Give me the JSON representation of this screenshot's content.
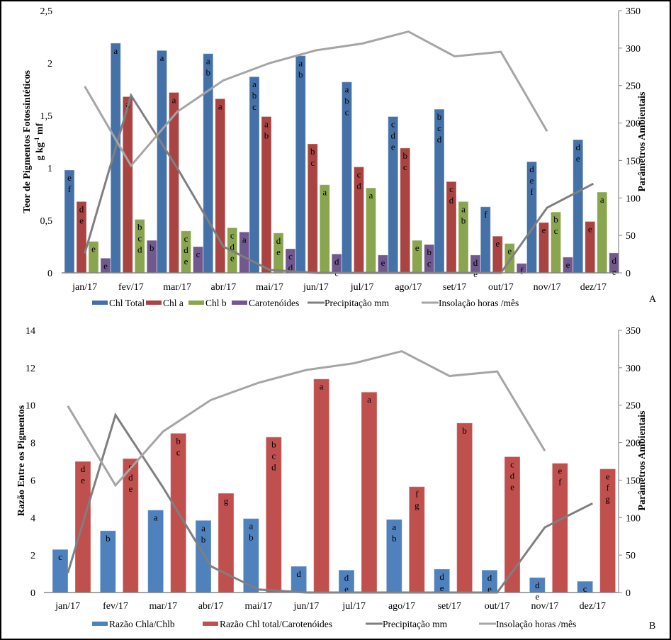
{
  "chart_data": [
    {
      "type": "bar",
      "panel_label": "A",
      "categories": [
        "jan/17",
        "fev/17",
        "mar/17",
        "abr/17",
        "mai/17",
        "jun/17",
        "jul/17",
        "ago/17",
        "set/17",
        "out/17",
        "nov/17",
        "dez/17"
      ],
      "ylabel": "Teor de Pigmentos Fotossintéticos",
      "ylabel_line2": "g kg-1 mf",
      "y2label": "Parâmetros Ambientais",
      "ylim": [
        0,
        2.5
      ],
      "yticks": [
        "0",
        "0,5",
        "1",
        "1,5",
        "2",
        "2,5"
      ],
      "y2lim": [
        0,
        350
      ],
      "y2ticks": [
        "0",
        "50",
        "100",
        "150",
        "200",
        "250",
        "300",
        "350"
      ],
      "grid": false,
      "legend_position": "bottom",
      "series": [
        {
          "name": "Chl Total",
          "kind": "bar",
          "axis": "left",
          "color": "#4472A8",
          "values": [
            0.98,
            2.19,
            2.12,
            2.09,
            1.87,
            2.07,
            1.82,
            1.49,
            1.56,
            0.63,
            1.06,
            1.27
          ],
          "letters": [
            "ef",
            "a",
            "a",
            "ab",
            "abc",
            "ab",
            "abc",
            "cde",
            "bcd",
            "f",
            "def",
            "de"
          ]
        },
        {
          "name": "Chl a",
          "kind": "bar",
          "axis": "left",
          "color": "#AA4443",
          "values": [
            0.68,
            1.68,
            1.72,
            1.66,
            1.49,
            1.23,
            1.01,
            1.19,
            0.87,
            0.35,
            0.48,
            0.49
          ],
          "letters": [
            "de",
            "a",
            "a",
            "a",
            "ab",
            "bc",
            "cd",
            "bc",
            "cd",
            "e",
            "e",
            "e"
          ]
        },
        {
          "name": "Chl b",
          "kind": "bar",
          "axis": "left",
          "color": "#89A54E",
          "values": [
            0.3,
            0.51,
            0.4,
            0.43,
            0.38,
            0.84,
            0.81,
            0.31,
            0.68,
            0.28,
            0.58,
            0.77
          ],
          "letters": [
            "e",
            "bcd",
            "cde",
            "cde",
            "de",
            "a",
            "a",
            "e",
            "ab",
            "e",
            "bc",
            "a"
          ]
        },
        {
          "name": "Carotenóides",
          "kind": "bar",
          "axis": "left",
          "color": "#71588F",
          "values": [
            0.14,
            0.31,
            0.25,
            0.39,
            0.23,
            0.18,
            0.17,
            0.27,
            0.17,
            0.09,
            0.15,
            0.19
          ],
          "letters": [
            "e",
            "b",
            "c",
            "a",
            "cd",
            "de",
            "e",
            "bc",
            "de",
            "f",
            "e",
            "de"
          ]
        },
        {
          "name": "Precipitação mm",
          "kind": "line",
          "axis": "right",
          "color": "#7F7F7F",
          "values": [
            26,
            237,
            140,
            35,
            4,
            0,
            0,
            0,
            0,
            0,
            87,
            119
          ]
        },
        {
          "name": "Insolação horas /mês",
          "kind": "line",
          "axis": "right",
          "color": "#A5A5A5",
          "values": [
            249,
            143,
            215,
            257,
            280,
            297,
            306,
            322,
            289,
            295,
            189,
            null
          ]
        }
      ]
    },
    {
      "type": "bar",
      "panel_label": "B",
      "categories": [
        "jan/17",
        "fev/17",
        "mar/17",
        "abr/17",
        "mai/17",
        "jun/17",
        "jul/17",
        "ago/17",
        "set/17",
        "out/17",
        "nov/17",
        "dez/17"
      ],
      "ylabel": "Razão Entre os Pigmentos",
      "y2label": "Parâmetros Ambientais",
      "ylim": [
        0,
        14
      ],
      "yticks": [
        "0",
        "2",
        "4",
        "6",
        "8",
        "10",
        "12",
        "14"
      ],
      "y2lim": [
        0,
        350
      ],
      "y2ticks": [
        "0",
        "50",
        "100",
        "150",
        "200",
        "250",
        "300",
        "350"
      ],
      "grid": false,
      "legend_position": "bottom",
      "series": [
        {
          "name": "Razão Chla/Chlb",
          "kind": "bar",
          "axis": "left",
          "color": "#4F81BD",
          "values": [
            2.3,
            3.3,
            4.4,
            3.85,
            3.95,
            1.4,
            1.2,
            3.9,
            1.25,
            1.2,
            0.8,
            0.6
          ],
          "letters": [
            "c",
            "b",
            "a",
            "ab",
            "ab",
            "d",
            "de",
            "ab",
            "de",
            "de",
            "de",
            "c"
          ]
        },
        {
          "name": "Razão Chl total/Carotenóides",
          "kind": "bar",
          "axis": "left",
          "color": "#C0504D",
          "values": [
            7.0,
            7.15,
            8.5,
            5.3,
            8.3,
            11.4,
            10.7,
            5.65,
            9.05,
            7.25,
            6.9,
            6.6
          ],
          "letters": [
            "de",
            "cde",
            "bc",
            "g",
            "bcd",
            "a",
            "a",
            "fg",
            "b",
            "cde",
            "ef",
            "efg"
          ]
        },
        {
          "name": "Precipitação mm",
          "kind": "line",
          "axis": "right",
          "color": "#7F7F7F",
          "values": [
            26,
            237,
            140,
            35,
            4,
            0,
            0,
            0,
            0,
            0,
            87,
            119
          ]
        },
        {
          "name": "Insolação horas /mês",
          "kind": "line",
          "axis": "right",
          "color": "#A5A5A5",
          "values": [
            249,
            143,
            215,
            257,
            280,
            297,
            306,
            322,
            289,
            295,
            189,
            null
          ]
        }
      ]
    }
  ]
}
